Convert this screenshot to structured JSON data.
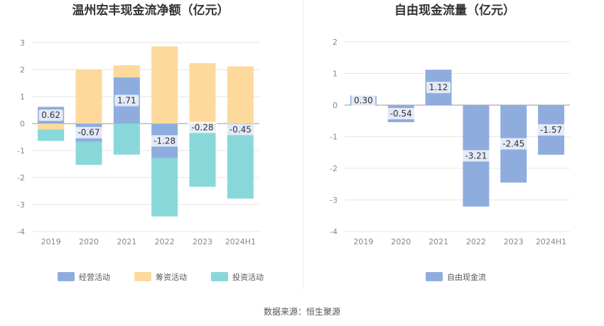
{
  "source_text": "数据来源：恒生聚源",
  "chart_data": [
    {
      "type": "bar",
      "stacked": true,
      "title": "温州宏丰现金流净额（亿元）",
      "categories": [
        "2019",
        "2020",
        "2021",
        "2022",
        "2023",
        "2024H1"
      ],
      "ylim": [
        -4,
        3
      ],
      "yticks": [
        3,
        2,
        1,
        0,
        -1,
        -2,
        -3,
        -4
      ],
      "grid": true,
      "legend_position": "bottom",
      "series": [
        {
          "name": "经营活动",
          "values": [
            0.62,
            -0.67,
            1.71,
            -1.28,
            -0.28,
            -0.45
          ],
          "color": "#8eadde",
          "labels": [
            "0.62",
            "-0.67",
            "1.71",
            "-1.28",
            "-0.28",
            "-0.45"
          ]
        },
        {
          "name": "筹资活动",
          "values": [
            -0.22,
            2.0,
            0.45,
            2.86,
            2.24,
            2.12
          ],
          "color": "#fdd99b"
        },
        {
          "name": "投资活动",
          "values": [
            -0.42,
            -0.86,
            -1.15,
            -2.16,
            -2.06,
            -2.33
          ],
          "color": "#88d8da"
        }
      ]
    },
    {
      "type": "bar",
      "title": "自由现金流量（亿元）",
      "categories": [
        "2019",
        "2020",
        "2021",
        "2022",
        "2023",
        "2024H1"
      ],
      "ylim": [
        -4,
        2
      ],
      "yticks": [
        2,
        1,
        0,
        -1,
        -2,
        -3,
        -4
      ],
      "grid": true,
      "legend_position": "bottom",
      "series": [
        {
          "name": "自由现金流",
          "values": [
            0.3,
            -0.54,
            1.12,
            -3.21,
            -2.45,
            -1.57
          ],
          "color": "#8eadde",
          "labels": [
            "0.30",
            "-0.54",
            "1.12",
            "-3.21",
            "-2.45",
            "-1.57"
          ]
        }
      ]
    }
  ]
}
